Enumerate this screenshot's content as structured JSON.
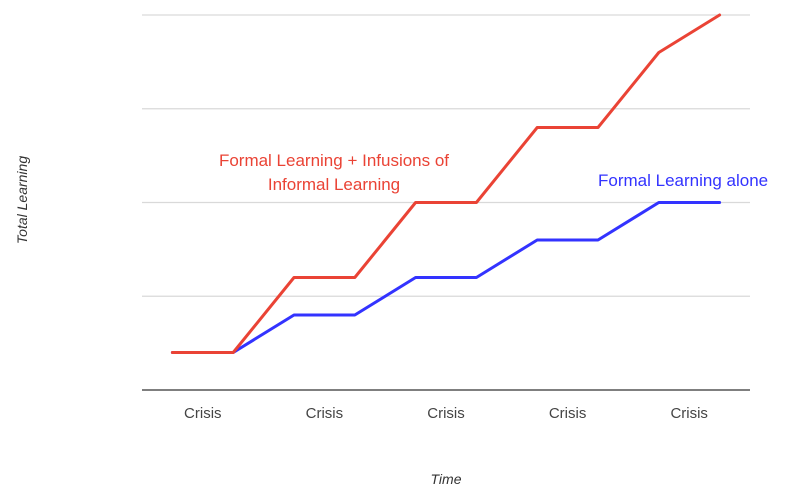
{
  "chart_data": {
    "type": "line",
    "title": "",
    "xlabel": "Time",
    "ylabel": "Total Learning",
    "x": [
      0,
      1,
      2,
      3,
      4,
      5,
      6,
      7,
      8,
      9
    ],
    "xlim": [
      -0.5,
      9.5
    ],
    "ylim": [
      0,
      4
    ],
    "grid": true,
    "gridlines": [
      1,
      2,
      3,
      4
    ],
    "x_ticks": [
      {
        "x": 0.5,
        "label": "Crisis"
      },
      {
        "x": 2.5,
        "label": "Crisis"
      },
      {
        "x": 4.5,
        "label": "Crisis"
      },
      {
        "x": 6.5,
        "label": "Crisis"
      },
      {
        "x": 8.5,
        "label": "Crisis"
      }
    ],
    "series": [
      {
        "name": "Formal Learning + Infusions of Informal Learning",
        "label_lines": [
          "Formal Learning + Infusions of",
          "Informal Learning"
        ],
        "color": "#ea4335",
        "values": [
          0.4,
          0.4,
          1.2,
          1.2,
          2.0,
          2.0,
          2.8,
          2.8,
          3.6,
          4.0
        ]
      },
      {
        "name": "Formal Learning alone",
        "label_lines": [
          "Formal Learning alone"
        ],
        "color": "#3333ff",
        "values": [
          0.4,
          0.4,
          0.8,
          0.8,
          1.2,
          1.2,
          1.6,
          1.6,
          2.0,
          2.0
        ]
      }
    ]
  }
}
